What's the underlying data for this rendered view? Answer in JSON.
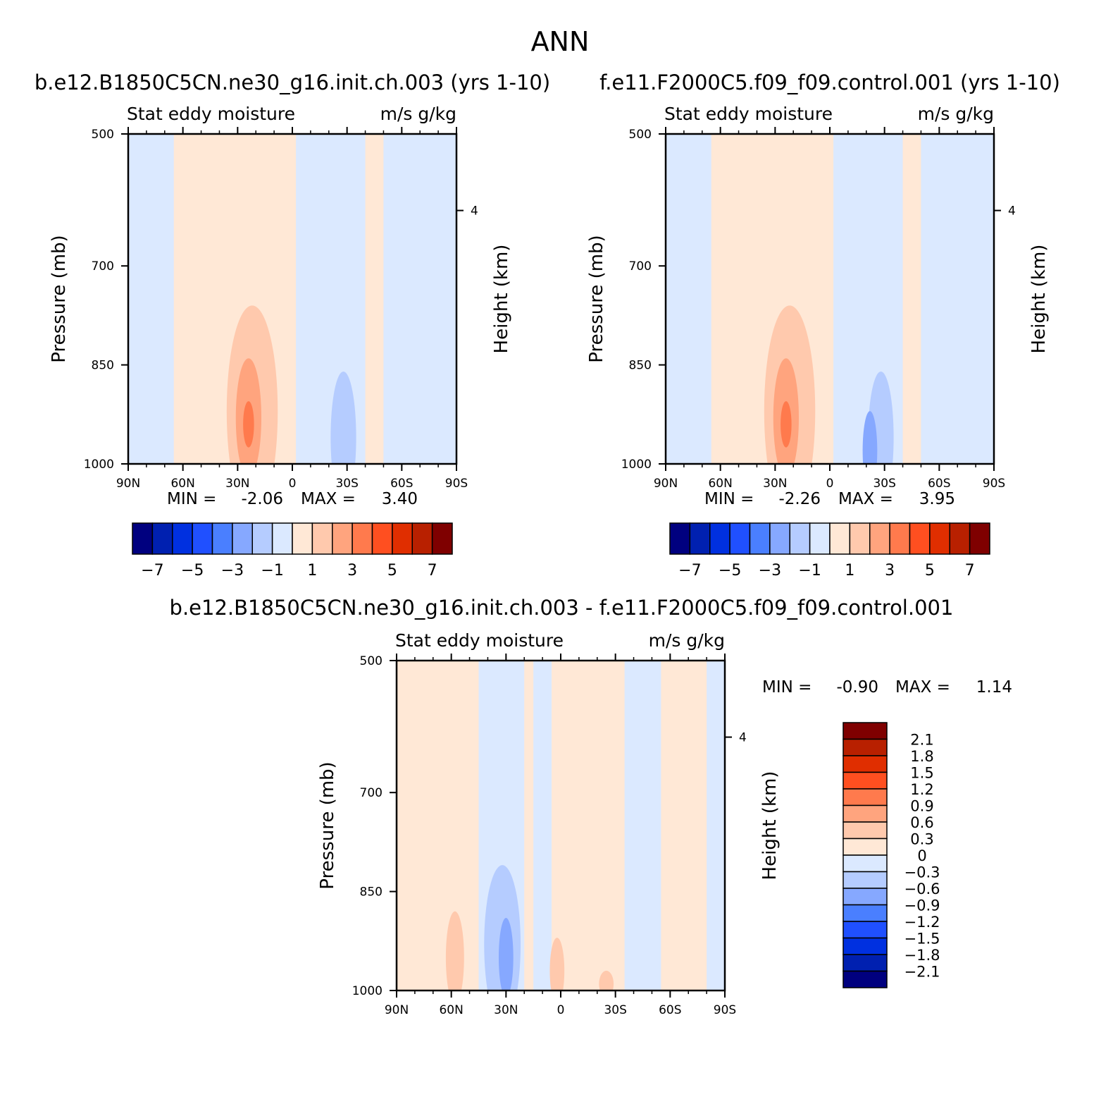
{
  "figure_title": "ANN",
  "colors": {
    "main_scale": [
      "#00007f",
      "#0020b0",
      "#0030e0",
      "#2050ff",
      "#4a7fff",
      "#86a8ff",
      "#b5ccff",
      "#dbe9ff",
      "#ffe8d6",
      "#ffc9ad",
      "#ffa47e",
      "#ff7a4d",
      "#ff4f20",
      "#e02e00",
      "#b82000",
      "#7f0000"
    ],
    "diff_scale": [
      "#00007f",
      "#0020b0",
      "#0030e0",
      "#2050ff",
      "#4a7fff",
      "#86a8ff",
      "#b5ccff",
      "#dbe9ff",
      "#ffe8d6",
      "#ffc9ad",
      "#ffa47e",
      "#ff7a4d",
      "#ff4f20",
      "#e02e00",
      "#b82000",
      "#7f0000"
    ]
  },
  "chart_data": [
    {
      "type": "heatmap",
      "title": "b.e12.B1850C5CN.ne30_g16.init.ch.003 (yrs 1-10)",
      "subtitle_left": "Stat eddy moisture",
      "subtitle_right": "m/s g/kg",
      "ylabel": "Pressure (mb)",
      "ylabel_right": "Height (km)",
      "x_ticks": [
        "90N",
        "60N",
        "30N",
        "0",
        "30S",
        "60S",
        "90S"
      ],
      "y_ticks": [
        "500",
        "700",
        "850",
        "1000"
      ],
      "y_ticks_right": [
        "4"
      ],
      "xlim": [
        90,
        -90
      ],
      "ylim": [
        1000,
        500
      ],
      "min_label": "MIN =",
      "min_value": "-2.06",
      "max_label": "MAX =",
      "max_value": "3.40",
      "colorbar_labels": [
        "-7",
        "-5",
        "-3",
        "-1",
        "1",
        "3",
        "5",
        "7"
      ]
    },
    {
      "type": "heatmap",
      "title": "f.e11.F2000C5.f09_f09.control.001 (yrs 1-10)",
      "subtitle_left": "Stat eddy moisture",
      "subtitle_right": "m/s g/kg",
      "ylabel": "Pressure (mb)",
      "ylabel_right": "Height (km)",
      "x_ticks": [
        "90N",
        "60N",
        "30N",
        "0",
        "30S",
        "60S",
        "90S"
      ],
      "y_ticks": [
        "500",
        "700",
        "850",
        "1000"
      ],
      "y_ticks_right": [
        "4"
      ],
      "xlim": [
        90,
        -90
      ],
      "ylim": [
        1000,
        500
      ],
      "min_label": "MIN =",
      "min_value": "-2.26",
      "max_label": "MAX =",
      "max_value": "3.95",
      "colorbar_labels": [
        "-7",
        "-5",
        "-3",
        "-1",
        "1",
        "3",
        "5",
        "7"
      ]
    },
    {
      "type": "heatmap",
      "title": "b.e12.B1850C5CN.ne30_g16.init.ch.003 - f.e11.F2000C5.f09_f09.control.001",
      "subtitle_left": "Stat eddy moisture",
      "subtitle_right": "m/s g/kg",
      "ylabel": "Pressure (mb)",
      "ylabel_right": "Height (km)",
      "x_ticks": [
        "90N",
        "60N",
        "30N",
        "0",
        "30S",
        "60S",
        "90S"
      ],
      "y_ticks": [
        "500",
        "700",
        "850",
        "1000"
      ],
      "y_ticks_right": [
        "4"
      ],
      "xlim": [
        90,
        -90
      ],
      "ylim": [
        1000,
        500
      ],
      "min_label": "MIN =",
      "min_value": "-0.90",
      "max_label": "MAX =",
      "max_value": "1.14",
      "colorbar_labels": [
        "2.1",
        "1.8",
        "1.5",
        "1.2",
        "0.9",
        "0.6",
        "0.3",
        "0",
        "-0.3",
        "-0.6",
        "-0.9",
        "-1.2",
        "-1.5",
        "-1.8",
        "-2.1"
      ]
    }
  ]
}
